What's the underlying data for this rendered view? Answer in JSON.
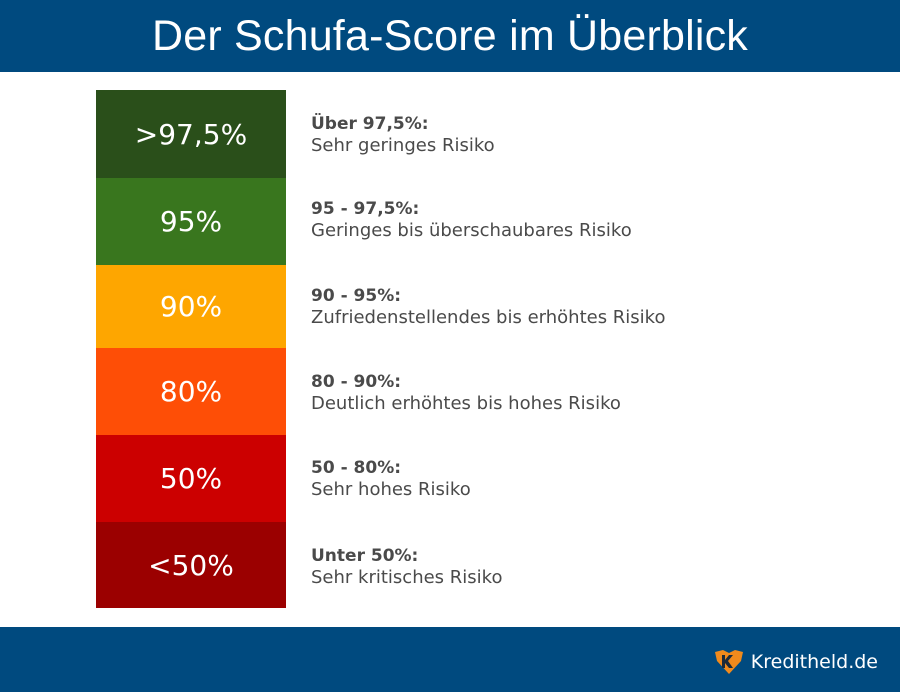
{
  "header": {
    "title": "Der Schufa-Score im Überblick"
  },
  "levels": [
    {
      "label": ">97,5%",
      "range": "Über 97,5%:",
      "description": "Sehr geringes Risiko",
      "color": "#2a4f1a"
    },
    {
      "label": "95%",
      "range": "95 - 97,5%:",
      "description": "Geringes bis überschaubares Risiko",
      "color": "#39761e"
    },
    {
      "label": "90%",
      "range": "90 - 95%:",
      "description": "Zufriedenstellendes bis erhöhtes Risiko",
      "color": "#fea600"
    },
    {
      "label": "80%",
      "range": "80 - 90%:",
      "description": "Deutlich erhöhtes bis hohes Risiko",
      "color": "#fe4e06"
    },
    {
      "label": "50%",
      "range": "50 - 80%:",
      "description": "Sehr hohes Risiko",
      "color": "#cc0000"
    },
    {
      "label": "<50%",
      "range": "Unter 50%:",
      "description": "Sehr kritisches Risiko",
      "color": "#9b0000"
    }
  ],
  "footer": {
    "brand": "Kreditheld.de",
    "brand_color": "#f08a1c",
    "logo_icon": "shield-k-icon"
  },
  "colors": {
    "header_bg": "#004a7f",
    "text": "#4a4a4a"
  }
}
